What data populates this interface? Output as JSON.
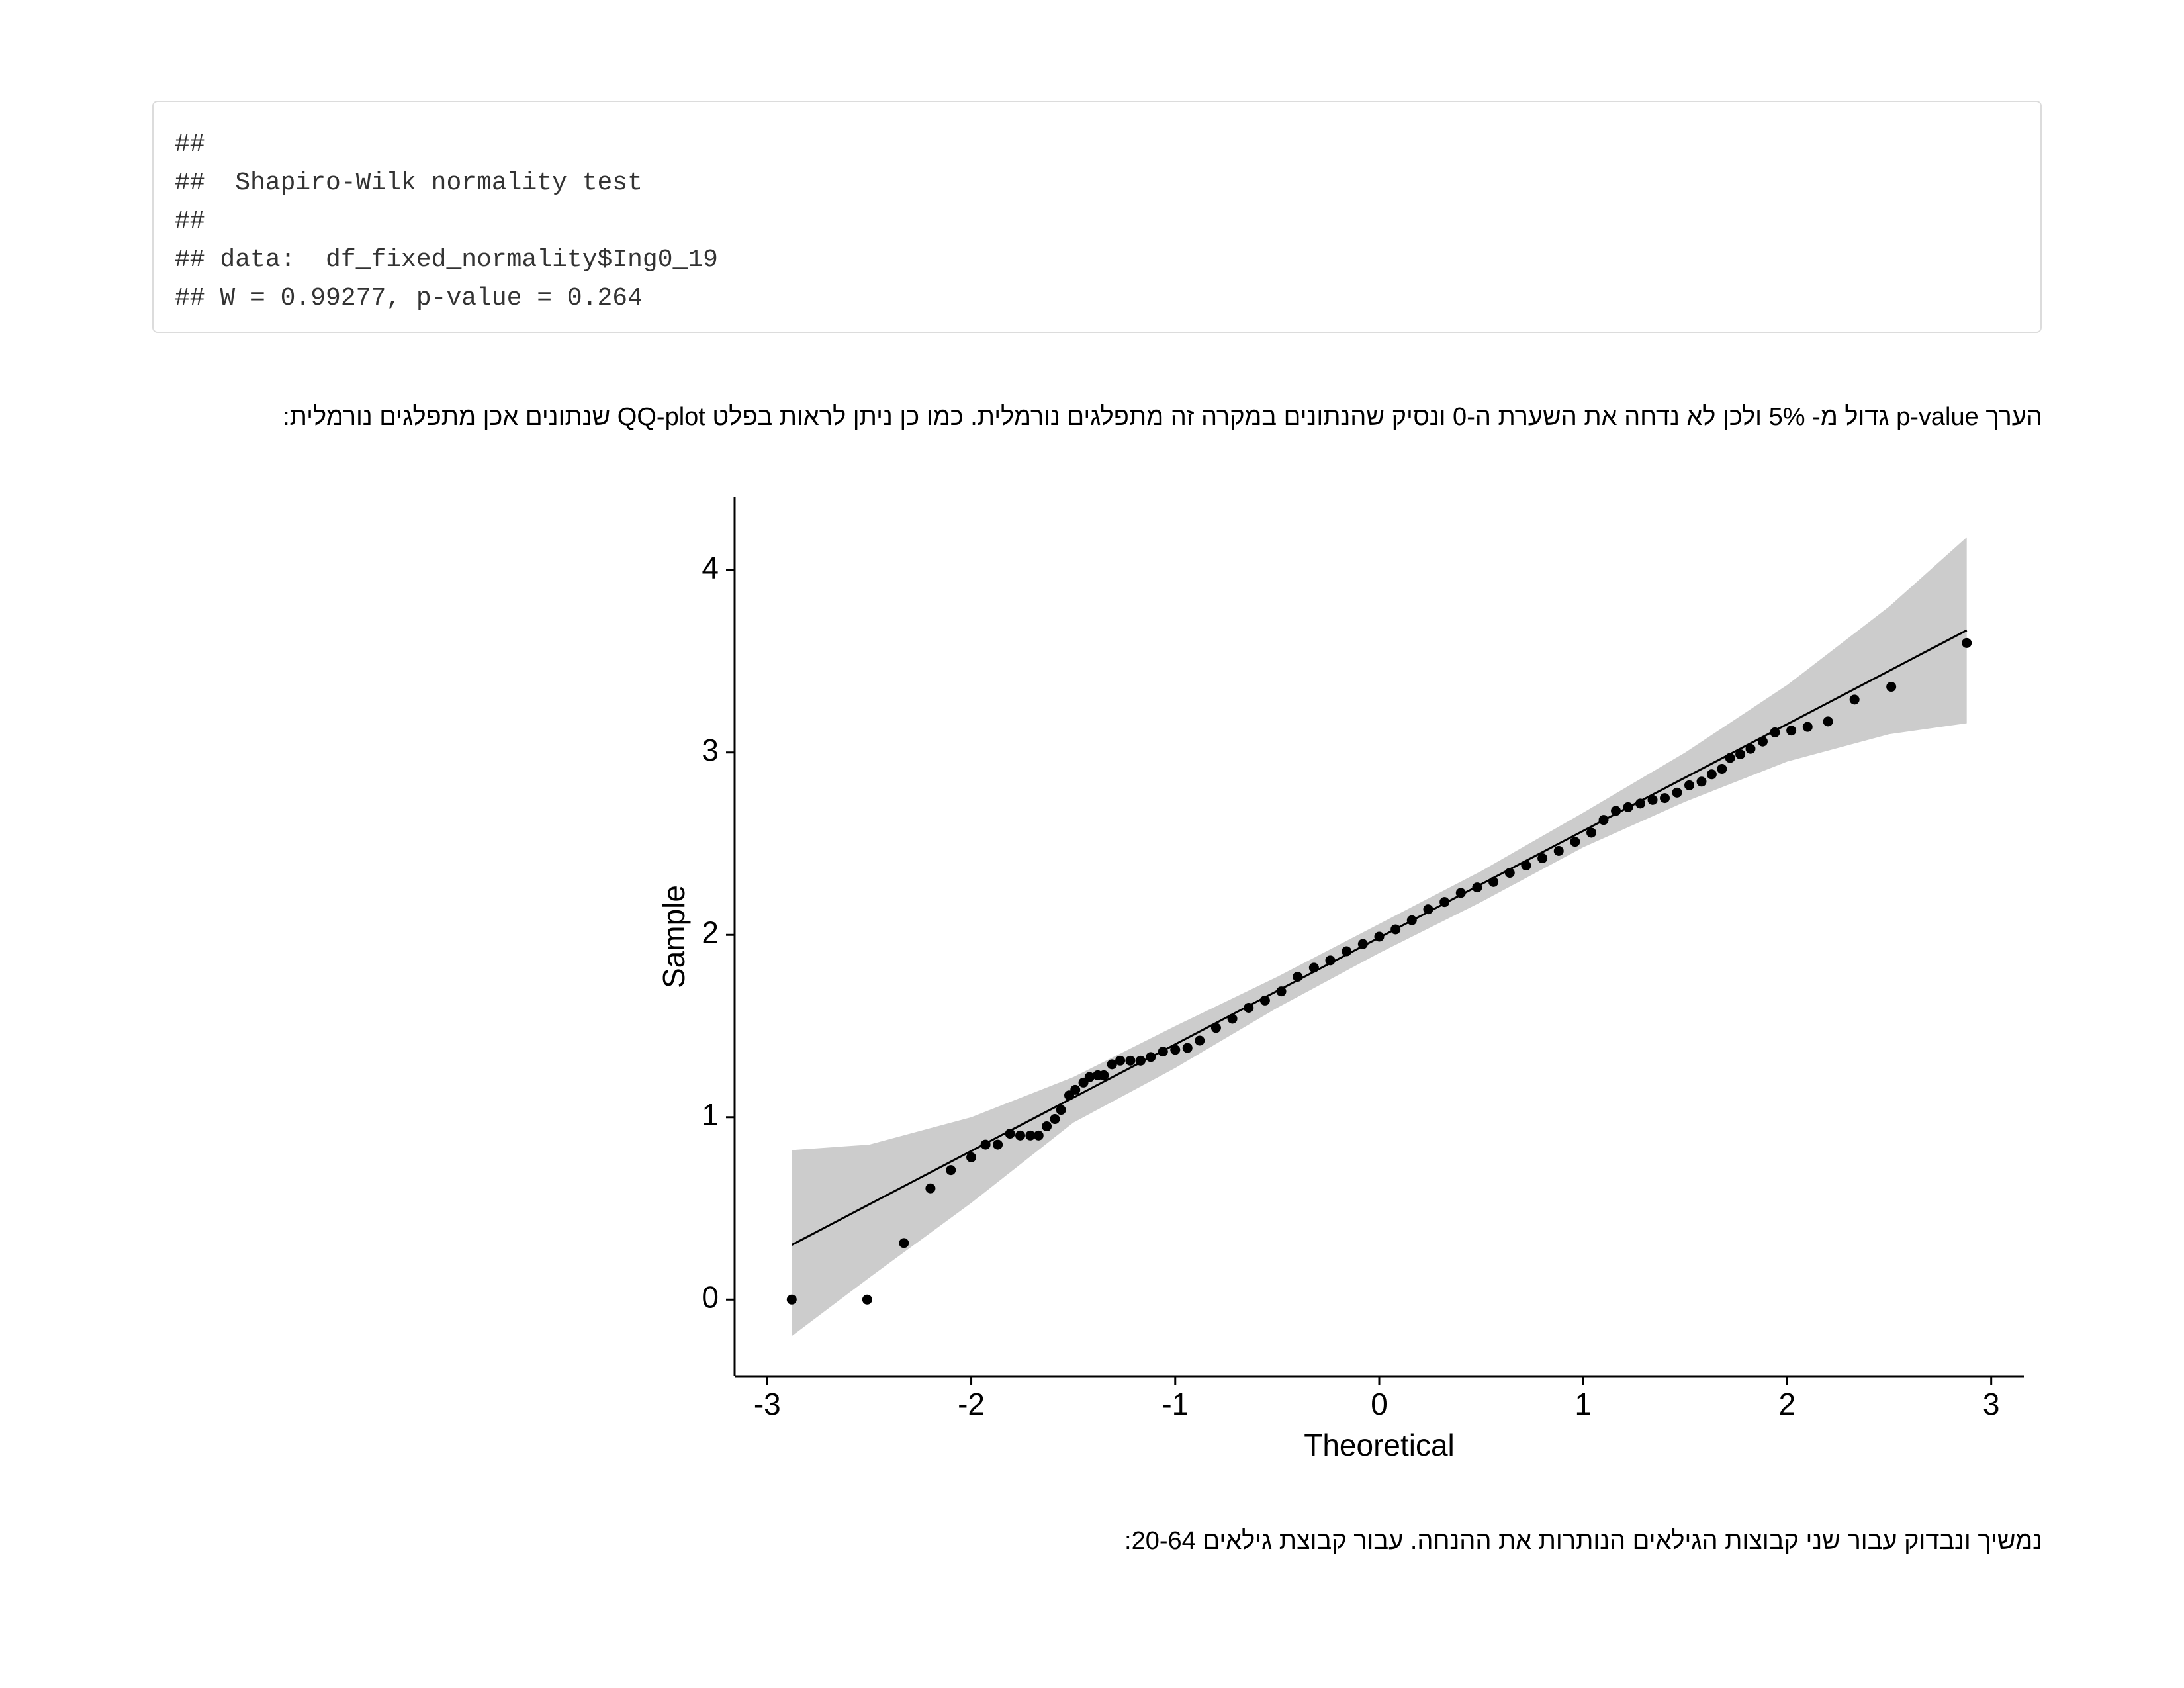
{
  "code_output": {
    "lines": [
      "##",
      "##  Shapiro-Wilk normality test",
      "##",
      "## data:  df_fixed_normality$Ing0_19",
      "## W = 0.99277, p-value = 0.264"
    ]
  },
  "paragraphs": [
    "הערך p-value גדול מ- 5% ולכן לא נדחה את השערת ה-0 ונסיק שהנתונים במקרה זה מתפלגים נורמלית. כמו כן ניתן לראות בפלט QQ-plot שנתונים אכן מתפלגים נורמלית:",
    "נמשיך ונבדוק עבור שני קבוצות הגילאים הנותרות את ההנחה. עבור קבוצת גילאים 20-64:"
  ],
  "chart_data": {
    "type": "scatter",
    "xlabel": "Theoretical",
    "ylabel": "Sample",
    "color": "#000000",
    "x": [
      -2.88,
      -2.51,
      -2.33,
      -2.2,
      -2.1,
      -2.0,
      -1.93,
      -1.87,
      -1.81,
      -1.76,
      -1.71,
      -1.67,
      -1.63,
      -1.59,
      -1.56,
      -1.52,
      -1.49,
      -1.45,
      -1.42,
      -1.38,
      -1.35,
      -1.31,
      -1.27,
      -1.22,
      -1.17,
      -1.12,
      -1.06,
      -1.0,
      -0.94,
      -0.88,
      -0.8,
      -0.72,
      -0.64,
      -0.56,
      -0.48,
      -0.4,
      -0.32,
      -0.24,
      -0.16,
      -0.08,
      0,
      0.08,
      0.16,
      0.24,
      0.32,
      0.4,
      0.48,
      0.56,
      0.64,
      0.72,
      0.8,
      0.88,
      0.96,
      1.04,
      1.1,
      1.16,
      1.22,
      1.28,
      1.34,
      1.4,
      1.46,
      1.52,
      1.58,
      1.63,
      1.68,
      1.72,
      1.77,
      1.82,
      1.88,
      1.94,
      2.02,
      2.1,
      2.2,
      2.33,
      2.51,
      2.88
    ],
    "values": [
      0,
      0,
      0.31,
      0.61,
      0.71,
      0.78,
      0.85,
      0.85,
      0.91,
      0.9,
      0.9,
      0.9,
      0.95,
      0.99,
      1.04,
      1.12,
      1.15,
      1.19,
      1.22,
      1.23,
      1.23,
      1.29,
      1.31,
      1.31,
      1.31,
      1.33,
      1.36,
      1.37,
      1.38,
      1.42,
      1.49,
      1.54,
      1.6,
      1.64,
      1.69,
      1.77,
      1.82,
      1.86,
      1.91,
      1.95,
      1.99,
      2.03,
      2.08,
      2.14,
      2.18,
      2.23,
      2.26,
      2.29,
      2.34,
      2.38,
      2.42,
      2.46,
      2.51,
      2.56,
      2.63,
      2.68,
      2.7,
      2.72,
      2.74,
      2.75,
      2.78,
      2.82,
      2.84,
      2.88,
      2.91,
      2.97,
      2.99,
      3.02,
      3.06,
      3.11,
      3.12,
      3.14,
      3.17,
      3.29,
      3.36,
      3.6
    ],
    "reference_line": {
      "color": "#000000",
      "x": [
        -2.88,
        2.88
      ],
      "y": [
        0.3,
        3.67
      ]
    },
    "confidence_band": {
      "color": "#cccccc",
      "x": [
        -2.88,
        -2.5,
        -2,
        -1.5,
        -1,
        -0.5,
        0,
        0.5,
        1,
        1.5,
        2,
        2.5,
        2.88
      ],
      "lower": [
        -0.2,
        0.12,
        0.53,
        0.97,
        1.27,
        1.6,
        1.9,
        2.18,
        2.48,
        2.73,
        2.95,
        3.1,
        3.16
      ],
      "upper": [
        0.82,
        0.85,
        1.0,
        1.22,
        1.5,
        1.77,
        2.06,
        2.35,
        2.67,
        3.0,
        3.37,
        3.8,
        4.18
      ]
    },
    "xlim": [
      -3.16,
      3.16
    ],
    "ylim": [
      -0.42,
      4.4
    ],
    "xticks": [
      -3,
      -2,
      -1,
      0,
      1,
      2,
      3
    ],
    "yticks": [
      0,
      1,
      2,
      3,
      4
    ],
    "grid": false
  }
}
